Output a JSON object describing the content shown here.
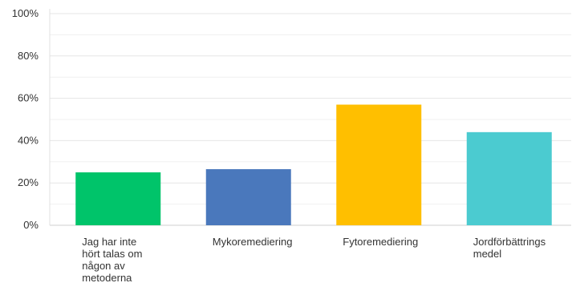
{
  "chart_data": {
    "type": "bar",
    "categories": [
      [
        "Jag har inte",
        "hört talas om",
        "någon av",
        "metoderna"
      ],
      [
        "Mykoremediering"
      ],
      [
        "Fytoremediering"
      ],
      [
        "Jordförbättrings",
        "medel"
      ]
    ],
    "values": [
      25,
      26.5,
      57,
      44
    ],
    "colors": [
      "#00c46a",
      "#4a78bc",
      "#ffbf00",
      "#4bcbd0"
    ],
    "ylim": [
      0,
      100
    ],
    "yticks": [
      "0%",
      "20%",
      "40%",
      "60%",
      "80%",
      "100%"
    ],
    "grid": true,
    "title": "",
    "xlabel": "",
    "ylabel": ""
  }
}
